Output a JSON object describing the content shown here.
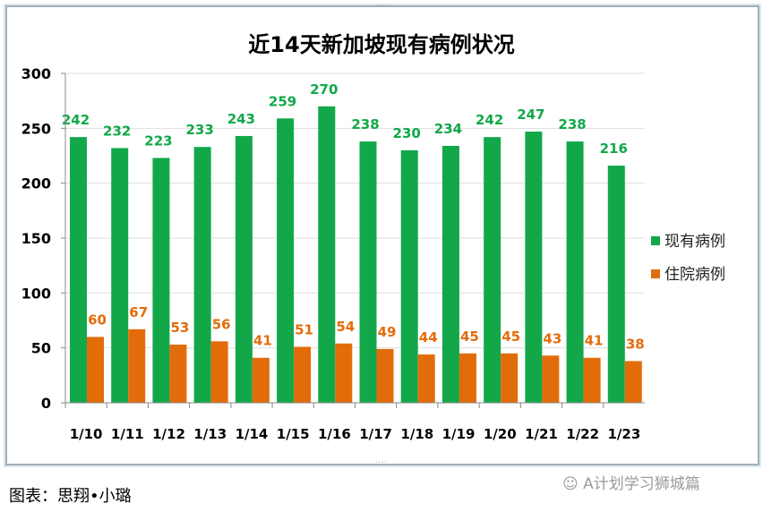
{
  "chart_data": {
    "type": "bar",
    "title": "近14天新加坡现有病例状况",
    "categories": [
      "1/10",
      "1/11",
      "1/12",
      "1/13",
      "1/14",
      "1/15",
      "1/16",
      "1/17",
      "1/18",
      "1/19",
      "1/20",
      "1/21",
      "1/22",
      "1/23"
    ],
    "series": [
      {
        "name": "现有病例",
        "color": "#12a84a",
        "values": [
          242,
          232,
          223,
          233,
          243,
          259,
          270,
          238,
          230,
          234,
          242,
          247,
          238,
          216
        ]
      },
      {
        "name": "住院病例",
        "color": "#e36c0a",
        "values": [
          60,
          67,
          53,
          56,
          41,
          51,
          54,
          49,
          44,
          45,
          45,
          43,
          41,
          38
        ]
      }
    ],
    "yticks": [
      "0",
      "50",
      "100",
      "150",
      "200",
      "250",
      "300"
    ],
    "ylim": [
      0,
      300
    ],
    "grid": true,
    "legend": "right",
    "data_labels": true
  },
  "footer": {
    "caption": "图表：思翔•小璐",
    "watermark": "A计划学习狮城篇"
  }
}
